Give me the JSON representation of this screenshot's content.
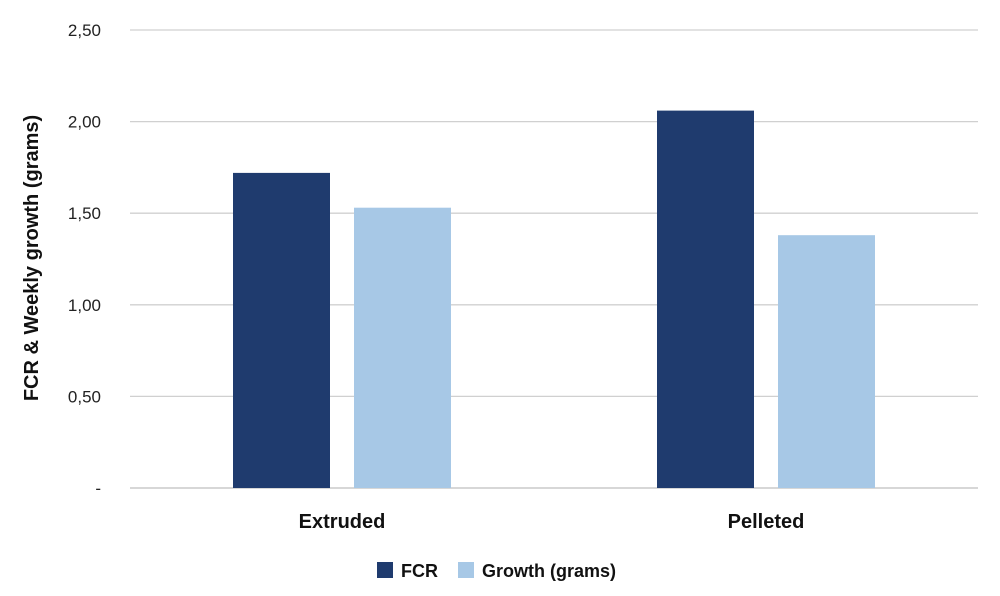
{
  "chart_data": {
    "type": "bar",
    "title": "",
    "xlabel": "",
    "ylabel": "FCR & Weekly growth (grams)",
    "categories": [
      "Extruded",
      "Pelleted"
    ],
    "series": [
      {
        "name": "FCR",
        "color": "#1f3b6e",
        "values": [
          1.72,
          2.06
        ]
      },
      {
        "name": "Growth (grams)",
        "color": "#a7c8e6",
        "values": [
          1.53,
          1.38
        ]
      }
    ],
    "ylim": [
      0,
      2.5
    ],
    "yticks": [
      0,
      0.5,
      1.0,
      1.5,
      2.0,
      2.5
    ],
    "ytick_labels": [
      "-",
      "0,50",
      "1,00",
      "1,50",
      "2,00",
      "2,50"
    ],
    "grid": true,
    "legend": "bottom-center"
  }
}
